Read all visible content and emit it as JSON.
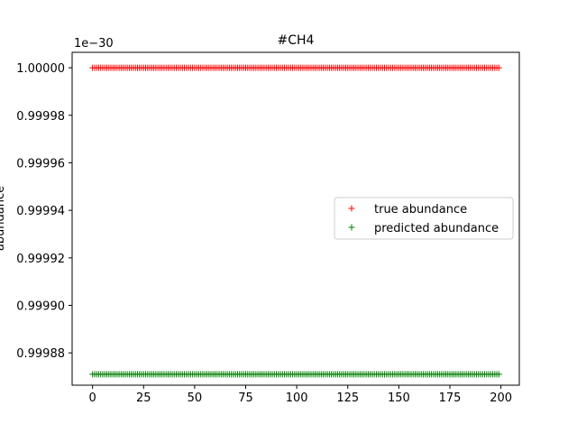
{
  "chart_data": {
    "type": "scatter",
    "title": "#CH4",
    "xlabel": "",
    "ylabel": "abundance",
    "offset_text": "1e−30",
    "xlim": [
      -10,
      209
    ],
    "ylim": [
      0.9998664,
      1.0000065
    ],
    "xticks": [
      0,
      25,
      50,
      75,
      100,
      125,
      150,
      175,
      200
    ],
    "yticks": [
      0.99988,
      0.9999,
      0.99992,
      0.99994,
      0.99996,
      0.99998,
      1.0
    ],
    "ytick_labels": [
      "0.99988",
      "0.99990",
      "0.99992",
      "0.99994",
      "0.99996",
      "0.99998",
      "1.00000"
    ],
    "grid": false,
    "legend_position": "center-right",
    "marker": "+",
    "x_range": [
      0,
      199
    ],
    "series": [
      {
        "name": "true abundance",
        "color": "#ff0000",
        "value": 1.0
      },
      {
        "name": "predicted abundance",
        "color": "#008000",
        "value": 0.999871
      }
    ]
  }
}
